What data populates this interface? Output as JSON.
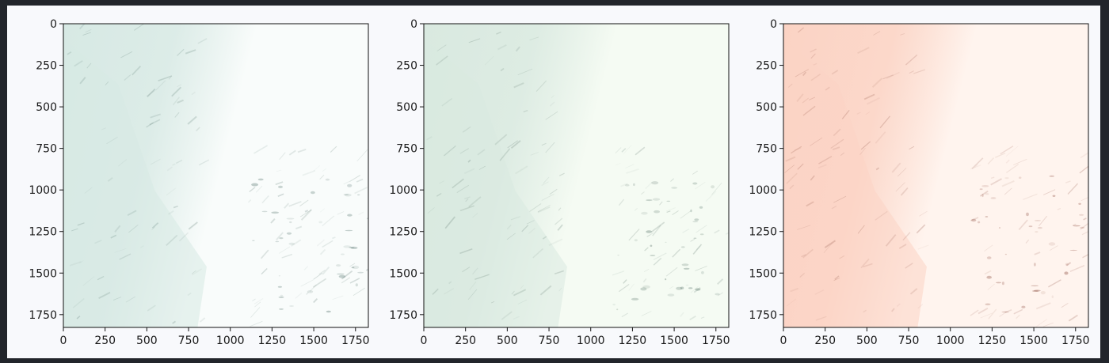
{
  "chart_data": [
    {
      "type": "heatmap",
      "title": "",
      "xlabel": "",
      "ylabel": "",
      "xlim": [
        0,
        1827
      ],
      "ylim": [
        1827,
        0
      ],
      "xticks": [
        0,
        250,
        500,
        750,
        1000,
        1250,
        1500,
        1750
      ],
      "yticks": [
        0,
        250,
        500,
        750,
        1000,
        1250,
        1500,
        1750
      ],
      "colormap": "teal-white",
      "colors": {
        "low": "#d7e9e4",
        "high": "#f9fcfb",
        "dark": "#4d6d66"
      }
    },
    {
      "type": "heatmap",
      "title": "",
      "xlabel": "",
      "ylabel": "",
      "xlim": [
        0,
        1827
      ],
      "ylim": [
        1827,
        0
      ],
      "xticks": [
        0,
        250,
        500,
        750,
        1000,
        1250,
        1500,
        1750
      ],
      "yticks": [
        0,
        250,
        500,
        750,
        1000,
        1250,
        1500,
        1750
      ],
      "colormap": "green-white",
      "colors": {
        "low": "#d9e9e0",
        "high": "#f5fbf3",
        "dark": "#4f6b60"
      }
    },
    {
      "type": "heatmap",
      "title": "",
      "xlabel": "",
      "ylabel": "",
      "xlim": [
        0,
        1827
      ],
      "ylim": [
        1827,
        0
      ],
      "xticks": [
        0,
        250,
        500,
        750,
        1000,
        1250,
        1500,
        1750
      ],
      "yticks": [
        0,
        250,
        500,
        750,
        1000,
        1250,
        1500,
        1750
      ],
      "colormap": "salmon-white",
      "colors": {
        "low": "#fbd3c4",
        "high": "#fff4ee",
        "dark": "#8a4a3c"
      }
    }
  ]
}
